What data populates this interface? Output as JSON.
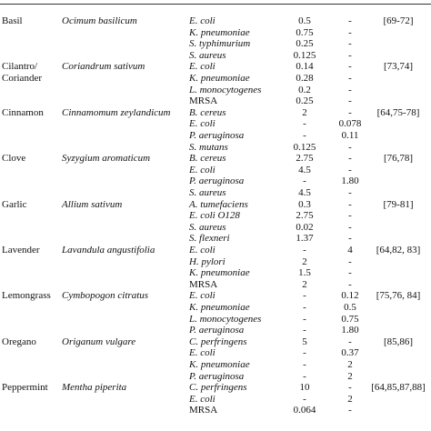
{
  "table": {
    "groups": [
      {
        "common": "Basil",
        "scientific": "Ocimum basilicum",
        "reference": "[69-72]",
        "entries": [
          [
            "E. coli",
            "0.5",
            "-"
          ],
          [
            "K. pneumoniae",
            "0.75",
            "-"
          ],
          [
            "S. typhimurium",
            "0.25",
            "-"
          ],
          [
            "S. aureus",
            "0.125",
            "-"
          ]
        ]
      },
      {
        "common": "Cilantro/ Coriander",
        "scientific": "Coriandrum sativum",
        "reference": "[73,74]",
        "entries": [
          [
            "E. coli",
            "0.14",
            "-"
          ],
          [
            "K. pneumoniae",
            "0.28",
            "-"
          ],
          [
            "L. monocytogenes",
            "0.2",
            "-"
          ],
          [
            "MRSA",
            "0.25",
            "-"
          ]
        ]
      },
      {
        "common": "Cinnamon",
        "scientific": "Cinnamomum zeylandicum",
        "reference": "[64,75-78]",
        "entries": [
          [
            "B. cereus",
            "2",
            "-"
          ],
          [
            "E. coli",
            "-",
            "0.078"
          ],
          [
            "P. aeruginosa",
            "-",
            "0.11"
          ],
          [
            "S. mutans",
            "0.125",
            "-"
          ]
        ]
      },
      {
        "common": "Clove",
        "scientific": "Syzygium aromaticum",
        "reference": "[76,78]",
        "entries": [
          [
            "B. cereus",
            "2.75",
            "-"
          ],
          [
            "E. coli",
            "4.5",
            "-"
          ],
          [
            "P. aeruginosa",
            "-",
            "1.80"
          ],
          [
            "S. aureus",
            "4.5",
            "-"
          ]
        ]
      },
      {
        "common": "Garlic",
        "scientific": "Allium sativum",
        "reference": "[79-81]",
        "entries": [
          [
            "A. tumefaciens",
            "0.3",
            "-"
          ],
          [
            "E. coli O128",
            "2.75",
            "-"
          ],
          [
            "S. aureus",
            "0.02",
            "-"
          ],
          [
            "S. flexneri",
            "1.37",
            "-"
          ]
        ]
      },
      {
        "common": "Lavender",
        "scientific": "Lavandula angustifolia",
        "reference": "[64,82, 83]",
        "entries": [
          [
            "E. coli",
            "-",
            "4"
          ],
          [
            "H. pylori",
            "2",
            "-"
          ],
          [
            "K. pneumoniae",
            "1.5",
            "-"
          ],
          [
            "MRSA",
            "2",
            "-"
          ]
        ]
      },
      {
        "common": "Lemongrass",
        "scientific": "Cymbopogon citratus",
        "reference": "[75,76, 84]",
        "entries": [
          [
            "E. coli",
            "-",
            "0.12"
          ],
          [
            "K. pneumoniae",
            "-",
            "0.5"
          ],
          [
            "L. monocytogenes",
            "-",
            "0.75"
          ],
          [
            "P. aeruginosa",
            "-",
            "1.80"
          ]
        ]
      },
      {
        "common": "Oregano",
        "scientific": "Origanum vulgare",
        "reference": "[85,86]",
        "entries": [
          [
            "C. perfringens",
            "5",
            "-"
          ],
          [
            "E. coli",
            "-",
            "0.37"
          ],
          [
            "K. pneumoniae",
            "-",
            "2"
          ],
          [
            "P. aeruginosa",
            "-",
            "2"
          ]
        ]
      },
      {
        "common": "Peppermint",
        "scientific": "Mentha piperita",
        "reference": "[64,85,87,88]",
        "entries": [
          [
            "C. perfringens",
            "10",
            "-"
          ],
          [
            "E. coli",
            "-",
            "2"
          ],
          [
            "MRSA",
            "0.064",
            "-"
          ]
        ]
      }
    ]
  }
}
